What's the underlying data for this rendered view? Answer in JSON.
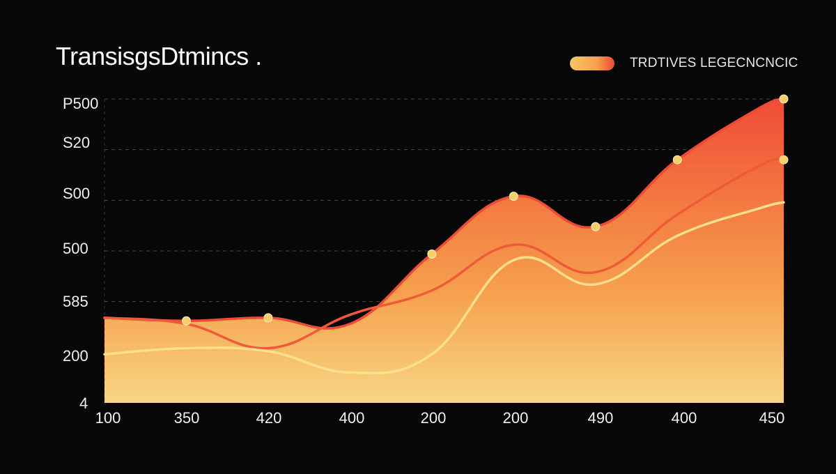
{
  "chart_data": {
    "type": "area",
    "title": "TransisgsDtmincs .",
    "legend": {
      "label": "TRDTIVES LEGECNCNCIC",
      "position": "top-right"
    },
    "y_ticks": [
      "P500",
      "S20",
      "S00",
      "500",
      "585",
      "200",
      "4"
    ],
    "x_ticks": [
      "100",
      "350",
      "420",
      "400",
      "200",
      "200",
      "490",
      "400",
      "450"
    ],
    "colors": {
      "top": "#ee4a36",
      "mid": "#f07a3c",
      "bottom": "#f7d27a",
      "marker": "#f7cf6a"
    },
    "series": [
      {
        "name": "top-area",
        "x": [
          0,
          1,
          2,
          3,
          4,
          5,
          6,
          7,
          8,
          8.3
        ],
        "y": [
          28,
          27,
          28,
          26,
          49,
          68,
          58,
          80,
          97,
          100
        ],
        "markers": [
          1,
          2,
          4,
          5,
          6,
          7,
          9
        ]
      },
      {
        "name": "middle-line",
        "x": [
          0,
          1,
          2,
          3,
          4,
          5,
          6,
          7,
          8,
          8.3
        ],
        "y": [
          28,
          26,
          18,
          29,
          37,
          52,
          43,
          62,
          78,
          80
        ],
        "markers": [
          9
        ]
      },
      {
        "name": "bottom-line",
        "x": [
          0,
          1,
          2,
          3,
          4,
          5,
          6,
          7,
          8,
          8.3
        ],
        "y": [
          16,
          18,
          17,
          10,
          16,
          47,
          39,
          55,
          64,
          66
        ],
        "markers": []
      }
    ],
    "ylim": [
      0,
      100
    ],
    "xlim": [
      0,
      8.3
    ]
  }
}
